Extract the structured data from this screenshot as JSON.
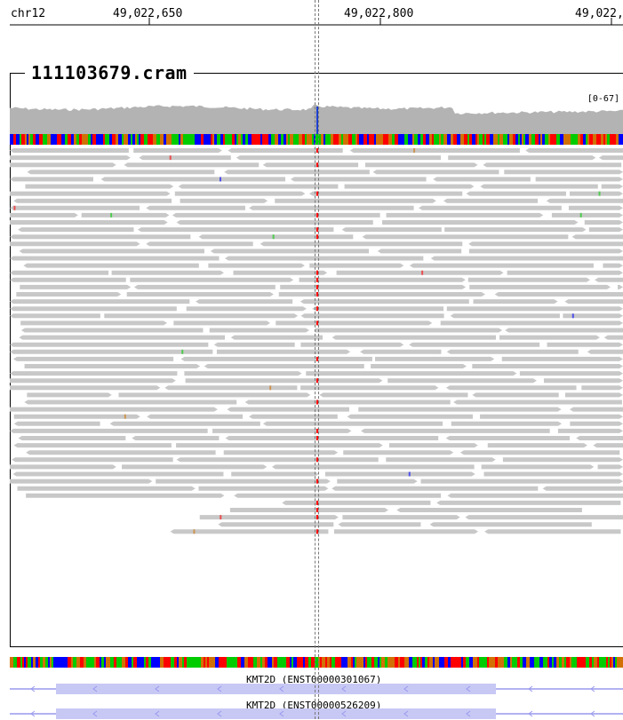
{
  "ruler": {
    "chromosome": "chr12",
    "positions": [
      "49,022,650",
      "49,022,800",
      "49,022,"
    ]
  },
  "track": {
    "title": "111103679.cram",
    "coverage_range": "[0-67]",
    "read_color": "#c8c8c8",
    "coverage_color": "#b3b3b3"
  },
  "genes": [
    {
      "label": "KMT2D (ENST00000301067)",
      "color": "#9999ee"
    },
    {
      "label": "KMT2D (ENST00000526209)",
      "color": "#9999ee"
    }
  ],
  "base_colors": {
    "A": "#00cc00",
    "C": "#0000ff",
    "G": "#d17105",
    "T": "#ff0000"
  }
}
